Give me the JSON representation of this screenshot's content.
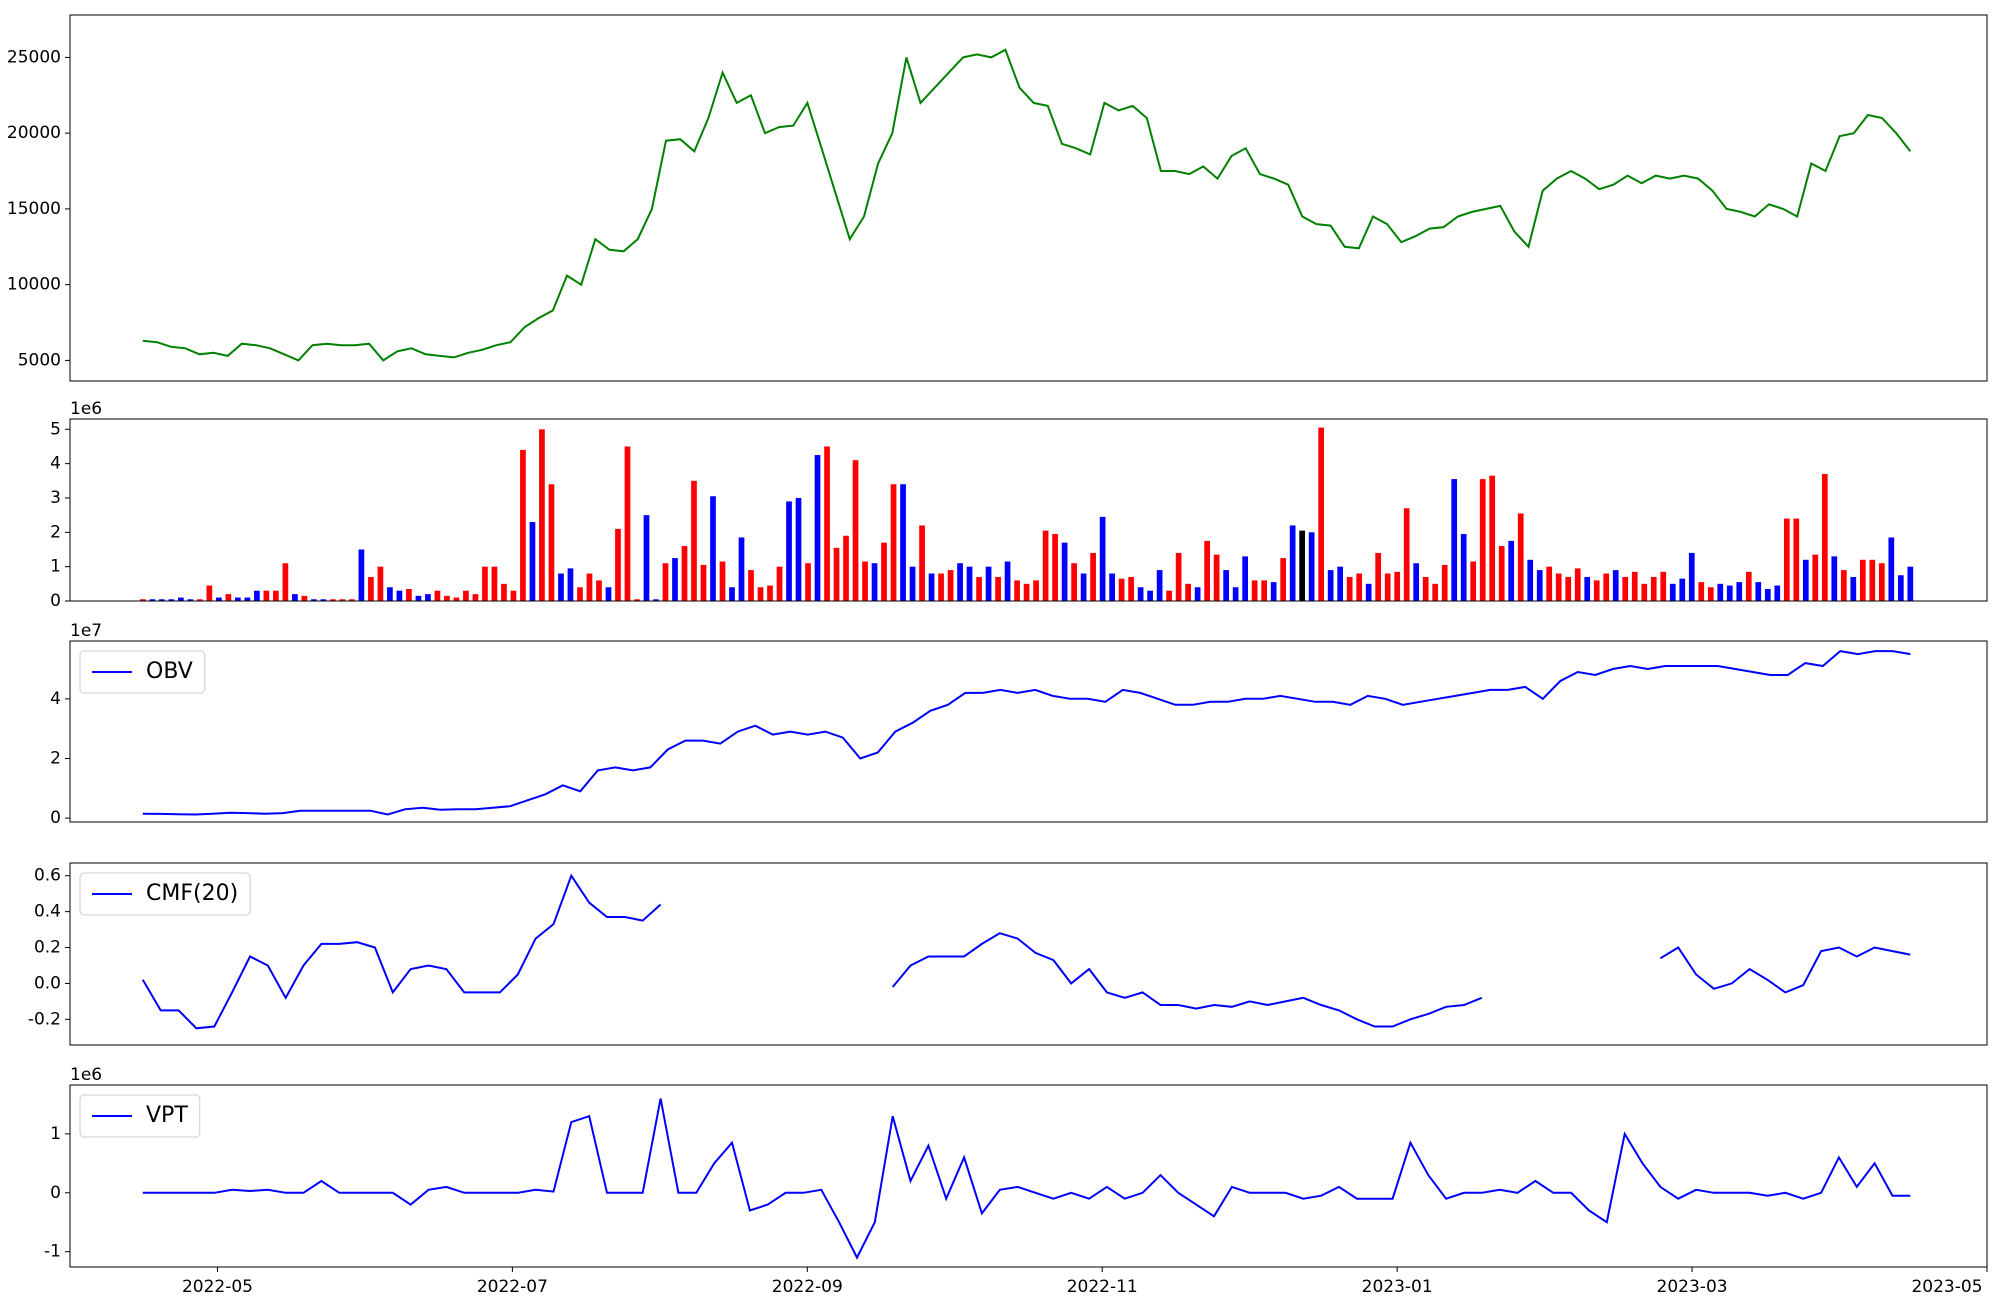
{
  "chart_data": [
    {
      "type": "line",
      "series": [
        {
          "color": "green",
          "values": [
            6300,
            6200,
            5900,
            5800,
            5400,
            5500,
            5300,
            6100,
            6000,
            5800,
            5400,
            5000,
            6000,
            6100,
            6000,
            6000,
            6100,
            5000,
            5600,
            5800,
            5400,
            5300,
            5200,
            5500,
            5700,
            6000,
            6200,
            7200,
            7800,
            8300,
            10600,
            10000,
            13000,
            12300,
            12200,
            13000,
            15000,
            19500,
            19600,
            18800,
            21000,
            24000,
            22000,
            22500,
            20000,
            20400,
            20500,
            22000,
            19000,
            16000,
            13000,
            14500,
            18000,
            20000,
            25000,
            22000,
            23000,
            24000,
            25000,
            25200,
            25000,
            25500,
            23000,
            22000,
            21800,
            19300,
            19000,
            18600,
            22000,
            21500,
            21800,
            21000,
            17500,
            17500,
            17300,
            17800,
            17000,
            18500,
            19000,
            17300,
            17000,
            16600,
            14500,
            14000,
            13900,
            12500,
            12400,
            14500,
            14000,
            12800,
            13200,
            13700,
            13800,
            14500,
            14800,
            15000,
            15200,
            13500,
            12500,
            16200,
            17000,
            17500,
            17000,
            16300,
            16600,
            17200,
            16700,
            17200,
            17000,
            17200,
            17000,
            16200,
            15000,
            14800,
            14500,
            15300,
            15000,
            14500,
            18000,
            17500,
            19800,
            20000,
            21200,
            21000,
            20000,
            18800
          ]
        }
      ],
      "ylim": [
        3640,
        27800
      ],
      "yticks": [
        5000,
        10000,
        15000,
        20000,
        25000
      ]
    },
    {
      "type": "bar",
      "offset_text": "1e6",
      "ylim": [
        0,
        5.3
      ],
      "yticks": [
        0,
        1,
        2,
        3,
        4,
        5
      ],
      "values": [
        0.05,
        0.05,
        0.05,
        0.05,
        0.1,
        0.05,
        0.05,
        0.45,
        0.1,
        0.2,
        0.1,
        0.1,
        0.3,
        0.3,
        0.3,
        1.1,
        0.2,
        0.15,
        0.05,
        0.05,
        0.05,
        0.05,
        0.05,
        1.5,
        0.7,
        1.0,
        0.4,
        0.3,
        0.35,
        0.15,
        0.2,
        0.3,
        0.15,
        0.1,
        0.3,
        0.2,
        1.0,
        1.0,
        0.5,
        0.3,
        4.4,
        2.3,
        5.0,
        3.4,
        0.8,
        0.95,
        0.4,
        0.8,
        0.6,
        0.4,
        2.1,
        4.5,
        0.05,
        2.5,
        0.05,
        1.1,
        1.25,
        1.6,
        3.5,
        1.05,
        3.05,
        1.15,
        0.4,
        1.85,
        0.9,
        0.4,
        0.45,
        1.0,
        2.9,
        3.0,
        1.1,
        4.25,
        4.5,
        1.55,
        1.9,
        4.1,
        1.15,
        1.1,
        1.7,
        3.4,
        3.4,
        1.0,
        2.2,
        0.8,
        0.8,
        0.9,
        1.1,
        1.0,
        0.7,
        1.0,
        0.7,
        1.15,
        0.6,
        0.5,
        0.6,
        2.05,
        1.95,
        1.7,
        1.1,
        0.8,
        1.4,
        2.45,
        0.8,
        0.65,
        0.7,
        0.4,
        0.3,
        0.9,
        0.3,
        1.4,
        0.5,
        0.4,
        1.75,
        1.35,
        0.9,
        0.4,
        1.3,
        0.6,
        0.6,
        0.55,
        1.25,
        2.2,
        2.05,
        2.0,
        5.05,
        0.9,
        1.0,
        0.7,
        0.8,
        0.5,
        1.4,
        0.8,
        0.85,
        2.7,
        1.1,
        0.7,
        0.5,
        1.05,
        3.55,
        1.95,
        1.15,
        3.55,
        3.65,
        1.6,
        1.75,
        2.55,
        1.2,
        0.9,
        1.0,
        0.8,
        0.7,
        0.95,
        0.7,
        0.6,
        0.8,
        0.9,
        0.7,
        0.85,
        0.5,
        0.7,
        0.85,
        0.5,
        0.65,
        1.4,
        0.55,
        0.4,
        0.5,
        0.45,
        0.55,
        0.85,
        0.55,
        0.35,
        0.45,
        2.4,
        2.4,
        1.2,
        1.35,
        3.7,
        1.3,
        0.9,
        0.7,
        1.2,
        1.2,
        1.1,
        1.85,
        0.75,
        1.0
      ],
      "colors": [
        "red",
        "blue",
        "blue",
        "blue",
        "blue",
        "blue",
        "red",
        "red",
        "blue",
        "red",
        "blue",
        "blue",
        "blue",
        "red",
        "red",
        "red",
        "blue",
        "red",
        "blue",
        "blue",
        "red",
        "red",
        "red",
        "blue",
        "red",
        "red",
        "blue",
        "blue",
        "red",
        "blue",
        "blue",
        "red",
        "red",
        "red",
        "red",
        "red",
        "red",
        "red",
        "red",
        "red",
        "red",
        "blue",
        "red",
        "red",
        "blue",
        "blue",
        "red",
        "red",
        "red",
        "blue",
        "red",
        "red",
        "red",
        "blue",
        "blue",
        "red",
        "blue",
        "red",
        "red",
        "red",
        "blue",
        "red",
        "blue",
        "blue",
        "red",
        "red",
        "red",
        "red",
        "blue",
        "blue",
        "red",
        "blue",
        "red",
        "red",
        "red",
        "red",
        "red",
        "blue",
        "red",
        "red",
        "blue",
        "blue",
        "red",
        "blue",
        "red",
        "red",
        "blue",
        "blue",
        "red",
        "blue",
        "red",
        "blue",
        "red",
        "red",
        "red",
        "red",
        "red",
        "blue",
        "red",
        "blue",
        "red",
        "blue",
        "blue",
        "red",
        "red",
        "blue",
        "blue",
        "blue",
        "red",
        "red",
        "red",
        "blue",
        "red",
        "red",
        "blue",
        "blue",
        "blue",
        "red",
        "red",
        "blue",
        "red",
        "blue",
        "black",
        "blue",
        "red",
        "blue",
        "blue",
        "red",
        "red",
        "blue",
        "red",
        "red",
        "red",
        "red",
        "blue",
        "red",
        "red",
        "red",
        "blue",
        "blue",
        "red",
        "red",
        "red",
        "red",
        "blue",
        "red",
        "blue",
        "blue",
        "red",
        "red",
        "red",
        "red",
        "blue",
        "red",
        "red",
        "blue",
        "red",
        "red",
        "red",
        "red",
        "red",
        "blue",
        "blue",
        "blue",
        "red",
        "red",
        "blue",
        "blue",
        "blue",
        "red",
        "blue",
        "blue",
        "blue",
        "red",
        "red",
        "blue",
        "red",
        "red",
        "blue",
        "red",
        "blue",
        "red",
        "red",
        "red",
        "blue",
        "blue",
        "blue"
      ]
    },
    {
      "type": "line",
      "offset_text": "1e7",
      "legend": "upper left",
      "ylim": [
        -0.13,
        5.94
      ],
      "yticks": [
        0,
        2,
        4
      ],
      "series": [
        {
          "name": "OBV",
          "color": "blue",
          "values": [
            0.15,
            0.14,
            0.13,
            0.12,
            0.15,
            0.18,
            0.17,
            0.15,
            0.17,
            0.25,
            0.25,
            0.25,
            0.25,
            0.25,
            0.12,
            0.3,
            0.35,
            0.28,
            0.3,
            0.3,
            0.35,
            0.4,
            0.6,
            0.8,
            1.1,
            0.9,
            1.6,
            1.7,
            1.6,
            1.7,
            2.3,
            2.6,
            2.6,
            2.5,
            2.9,
            3.1,
            2.8,
            2.9,
            2.8,
            2.9,
            2.7,
            2.0,
            2.2,
            2.9,
            3.2,
            3.6,
            3.8,
            4.2,
            4.2,
            4.3,
            4.2,
            4.3,
            4.1,
            4.0,
            4.0,
            3.9,
            4.3,
            4.2,
            4.0,
            3.8,
            3.8,
            3.9,
            3.9,
            4.0,
            4.0,
            4.1,
            4.0,
            3.9,
            3.9,
            3.8,
            4.1,
            4.0,
            3.8,
            3.9,
            4.0,
            4.1,
            4.2,
            4.3,
            4.3,
            4.4,
            4.0,
            4.6,
            4.9,
            4.8,
            5.0,
            5.1,
            5.0,
            5.1,
            5.1,
            5.1,
            5.1,
            5.0,
            4.9,
            4.8,
            4.8,
            5.2,
            5.1,
            5.6,
            5.5,
            5.6,
            5.6,
            5.5
          ]
        }
      ]
    },
    {
      "type": "line",
      "legend": "upper left",
      "ylim": [
        -0.343,
        0.671
      ],
      "yticks": [
        -0.2,
        {
          "value": 0,
          "label": "0.0"
        },
        0.2,
        0.4,
        0.6
      ],
      "series": [
        {
          "name": "CMF(20)",
          "color": "blue",
          "values": [
            0.02,
            -0.15,
            -0.15,
            -0.25,
            -0.24,
            -0.05,
            0.15,
            0.1,
            -0.08,
            0.1,
            0.22,
            0.22,
            0.23,
            0.2,
            -0.05,
            0.08,
            0.1,
            0.08,
            -0.05,
            -0.05,
            -0.05,
            0.05,
            0.25,
            0.33,
            0.6,
            0.45,
            0.37,
            0.37,
            0.35,
            0.44,
            null,
            null,
            null,
            null,
            null,
            null,
            null,
            null,
            null,
            null,
            null,
            null,
            -0.02,
            0.1,
            0.15,
            0.15,
            0.15,
            0.22,
            0.28,
            0.25,
            0.17,
            0.13,
            0.0,
            0.08,
            -0.05,
            -0.08,
            -0.05,
            -0.12,
            -0.12,
            -0.14,
            -0.12,
            -0.13,
            -0.1,
            -0.12,
            -0.1,
            -0.08,
            -0.12,
            -0.15,
            -0.2,
            -0.24,
            -0.24,
            -0.2,
            -0.17,
            -0.13,
            -0.12,
            -0.08,
            null,
            null,
            null,
            null,
            null,
            null,
            null,
            null,
            null,
            0.14,
            0.2,
            0.05,
            -0.03,
            0.0,
            0.08,
            0.02,
            -0.05,
            -0.01,
            0.18,
            0.2,
            0.15,
            0.2,
            0.18,
            0.16
          ]
        }
      ]
    },
    {
      "type": "line",
      "offset_text": "1e6",
      "legend": "upper left",
      "ylim": [
        -1.26,
        1.83
      ],
      "yticks": [
        -1,
        0,
        1
      ],
      "xlim": [
        "2022-04",
        "2023-05"
      ],
      "xticks": [
        "2022-05",
        "2022-07",
        "2022-09",
        "2022-11",
        "2023-01",
        "2023-03",
        "2023-05"
      ],
      "series": [
        {
          "name": "VPT",
          "color": "blue",
          "values": [
            0,
            0,
            0,
            0,
            0,
            0.05,
            0.03,
            0.05,
            0,
            0,
            0.2,
            0,
            0,
            0,
            0,
            -0.2,
            0.05,
            0.1,
            0,
            0,
            0,
            0,
            0.05,
            0.02,
            1.2,
            1.3,
            0,
            0,
            0,
            1.6,
            0,
            0,
            0.5,
            0.85,
            -0.3,
            -0.2,
            0,
            0,
            0.05,
            -0.5,
            -1.1,
            -0.5,
            1.3,
            0.2,
            0.8,
            -0.1,
            0.6,
            -0.35,
            0.05,
            0.1,
            0,
            -0.1,
            0,
            -0.1,
            0.1,
            -0.1,
            0,
            0.3,
            0,
            -0.2,
            -0.4,
            0.1,
            0,
            0,
            0,
            -0.1,
            -0.05,
            0.1,
            -0.1,
            -0.1,
            -0.1,
            0.85,
            0.3,
            -0.1,
            0,
            0,
            0.05,
            0,
            0.2,
            0,
            0,
            -0.3,
            -0.5,
            1.0,
            0.5,
            0.1,
            -0.1,
            0.05,
            0,
            0,
            0,
            -0.05,
            0,
            -0.1,
            0,
            0.6,
            0.1,
            0.5,
            -0.05,
            -0.05
          ]
        }
      ]
    }
  ]
}
